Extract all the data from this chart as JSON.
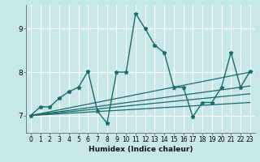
{
  "xlabel": "Humidex (Indice chaleur)",
  "bg_color": "#c8e8e8",
  "grid_color": "#ffffff",
  "line_color": "#1a6b6b",
  "xlim": [
    -0.5,
    23.5
  ],
  "ylim": [
    6.6,
    9.55
  ],
  "yticks": [
    7,
    8,
    9
  ],
  "xticks": [
    0,
    1,
    2,
    3,
    4,
    5,
    6,
    7,
    8,
    9,
    10,
    11,
    12,
    13,
    14,
    15,
    16,
    17,
    18,
    19,
    20,
    21,
    22,
    23
  ],
  "main_x": [
    0,
    1,
    2,
    3,
    4,
    5,
    6,
    7,
    8,
    9,
    10,
    11,
    12,
    13,
    14,
    15,
    16,
    17,
    18,
    19,
    20,
    21,
    22,
    23
  ],
  "main_y": [
    7.0,
    7.2,
    7.2,
    7.4,
    7.55,
    7.65,
    8.02,
    7.1,
    6.82,
    8.0,
    8.0,
    9.35,
    9.0,
    8.62,
    8.45,
    7.65,
    7.65,
    6.97,
    7.3,
    7.3,
    7.65,
    8.45,
    7.65,
    8.02
  ],
  "trend_lines": [
    {
      "x": [
        0,
        23
      ],
      "y": [
        7.0,
        7.3
      ]
    },
    {
      "x": [
        0,
        23
      ],
      "y": [
        7.0,
        7.5
      ]
    },
    {
      "x": [
        0,
        23
      ],
      "y": [
        7.0,
        7.68
      ]
    },
    {
      "x": [
        0,
        23
      ],
      "y": [
        7.0,
        8.0
      ]
    }
  ]
}
